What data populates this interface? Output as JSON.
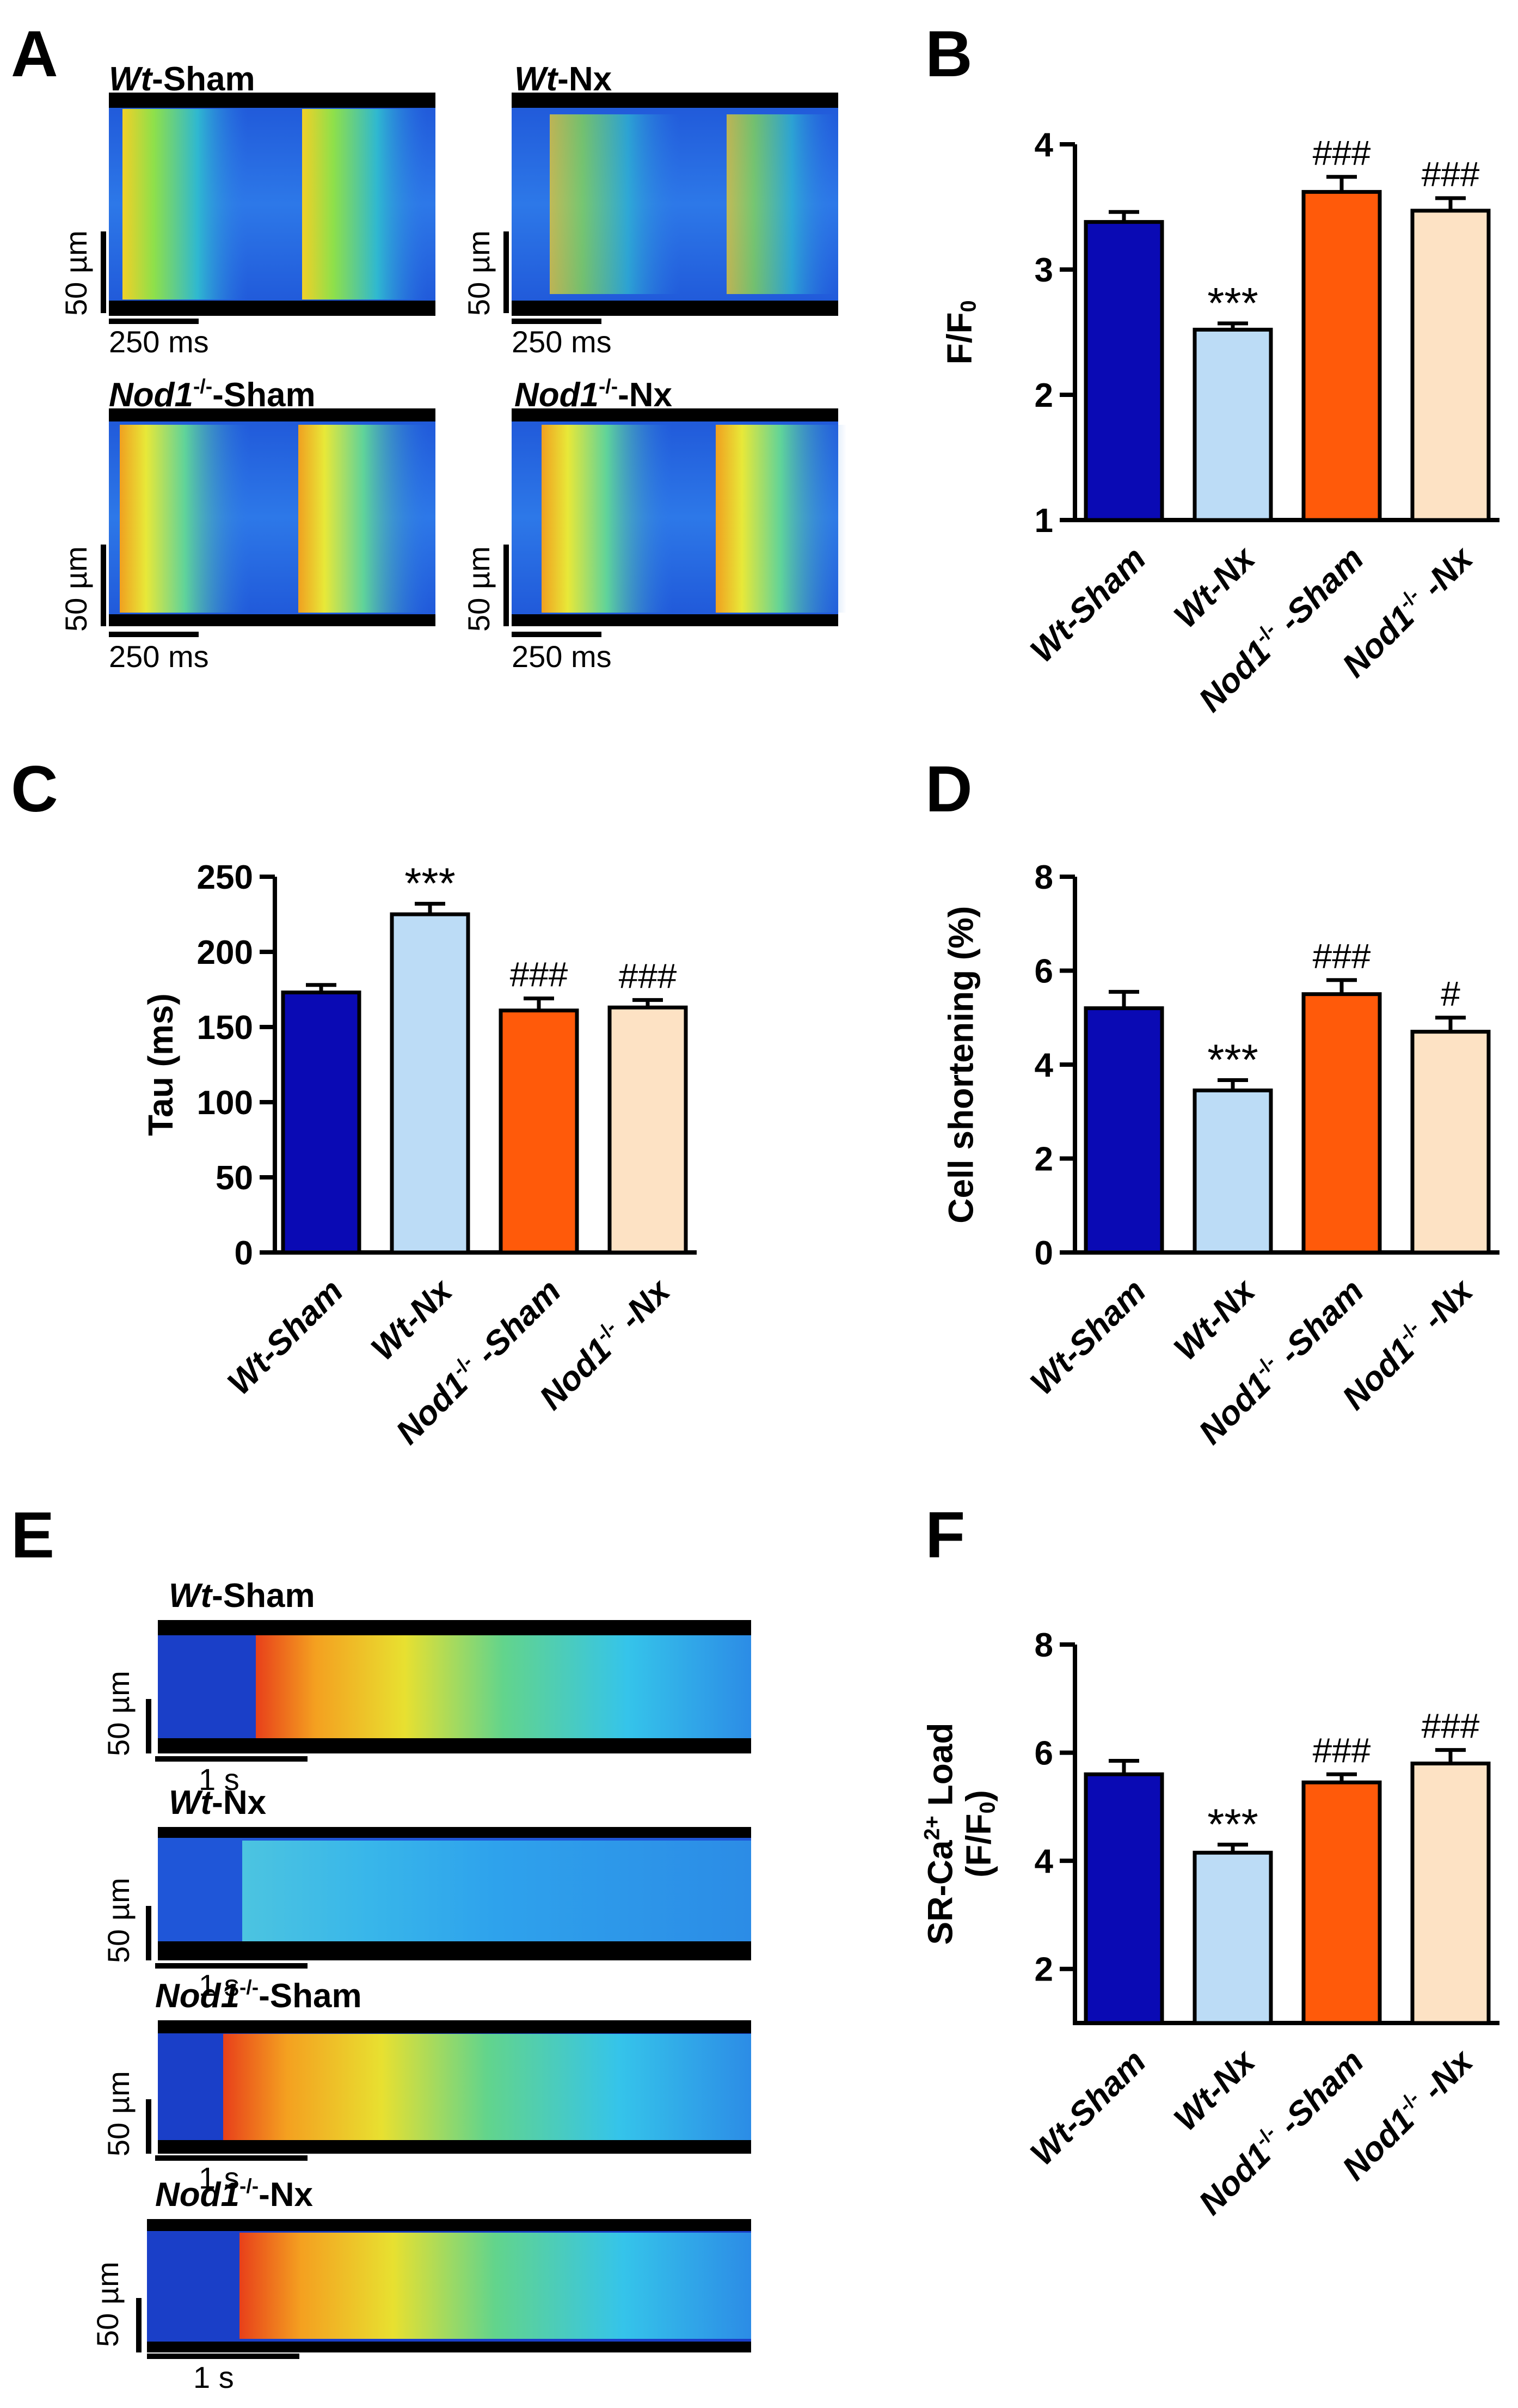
{
  "panels": {
    "A": {
      "letter": "A",
      "groups": [
        {
          "name_it": "Wt",
          "name_sup": "",
          "name_rest": "-Sham",
          "scale_v": "50 µm",
          "scale_h": "250 ms"
        },
        {
          "name_it": "Wt",
          "name_sup": "",
          "name_rest": "-Nx",
          "scale_v": "50 µm",
          "scale_h": "250 ms"
        },
        {
          "name_it": "Nod1",
          "name_sup": "-/-",
          "name_rest": "-Sham",
          "scale_v": "50 µm",
          "scale_h": "250 ms"
        },
        {
          "name_it": "Nod1",
          "name_sup": "-/-",
          "name_rest": "-Nx",
          "scale_v": "50 µm",
          "scale_h": "250 ms"
        }
      ]
    },
    "B": {
      "letter": "B"
    },
    "C": {
      "letter": "C"
    },
    "D": {
      "letter": "D"
    },
    "E": {
      "letter": "E",
      "groups": [
        {
          "name_it": "Wt",
          "name_sup": "",
          "name_rest": "-Sham",
          "scale_v": "50 µm",
          "scale_h": "1 s"
        },
        {
          "name_it": "Wt",
          "name_sup": "",
          "name_rest": "-Nx",
          "scale_v": "50 µm",
          "scale_h": "1 s"
        },
        {
          "name_it": "Nod1",
          "name_sup": "-/-",
          "name_rest": "-Sham",
          "scale_v": "50 µm",
          "scale_h": "1 s"
        },
        {
          "name_it": "Nod1",
          "name_sup": "-/-",
          "name_rest": "-Nx",
          "scale_v": "50 µm",
          "scale_h": "1 s"
        }
      ]
    },
    "F": {
      "letter": "F"
    }
  },
  "chart_data": [
    {
      "panel": "B",
      "type": "bar",
      "categories": [
        "Wt-Sham",
        "Wt-Nx",
        "Nod1-/- -Sham",
        "Nod1-/- -Nx"
      ],
      "category_labels": [
        {
          "it": "Wt",
          "rest": "-Sham",
          "sup": "",
          "tail": ""
        },
        {
          "it": "Wt",
          "rest": "-Nx",
          "sup": "",
          "tail": ""
        },
        {
          "it": "Nod1",
          "rest": "",
          "sup": "-/-",
          "tail": " -Sham"
        },
        {
          "it": "Nod1",
          "rest": "",
          "sup": "-/-",
          "tail": " -Nx"
        }
      ],
      "values": [
        3.38,
        2.52,
        3.62,
        3.47
      ],
      "errors": [
        0.08,
        0.05,
        0.12,
        0.1
      ],
      "annotations": [
        "",
        "***",
        "###",
        "###"
      ],
      "ylabel_main": "F/F",
      "ylabel_sub": "0",
      "ylim": [
        1,
        4
      ],
      "yticks": [
        1,
        2,
        3,
        4
      ],
      "colors": [
        "#0a0ab4",
        "#bcdcf6",
        "#ff5a0a",
        "#fde2c4"
      ]
    },
    {
      "panel": "C",
      "type": "bar",
      "categories": [
        "Wt-Sham",
        "Wt-Nx",
        "Nod1-/- -Sham",
        "Nod1-/- -Nx"
      ],
      "category_labels": [
        {
          "it": "Wt",
          "rest": "-Sham",
          "sup": "",
          "tail": ""
        },
        {
          "it": "Wt",
          "rest": "-Nx",
          "sup": "",
          "tail": ""
        },
        {
          "it": "Nod1",
          "rest": "",
          "sup": "-/-",
          "tail": " -Sham"
        },
        {
          "it": "Nod1",
          "rest": "",
          "sup": "-/-",
          "tail": " -Nx"
        }
      ],
      "values": [
        173,
        225,
        161,
        163
      ],
      "errors": [
        5,
        7,
        8,
        5
      ],
      "annotations": [
        "",
        "***",
        "###",
        "###"
      ],
      "ylabel_main": "Tau (ms)",
      "ylabel_sub": "",
      "ylim": [
        0,
        250
      ],
      "yticks": [
        0,
        50,
        100,
        150,
        200,
        250
      ],
      "colors": [
        "#0a0ab4",
        "#bcdcf6",
        "#ff5a0a",
        "#fde2c4"
      ]
    },
    {
      "panel": "D",
      "type": "bar",
      "categories": [
        "Wt-Sham",
        "Wt-Nx",
        "Nod1-/- -Sham",
        "Nod1-/- -Nx"
      ],
      "category_labels": [
        {
          "it": "Wt",
          "rest": "-Sham",
          "sup": "",
          "tail": ""
        },
        {
          "it": "Wt",
          "rest": "-Nx",
          "sup": "",
          "tail": ""
        },
        {
          "it": "Nod1",
          "rest": "",
          "sup": "-/-",
          "tail": " -Sham"
        },
        {
          "it": "Nod1",
          "rest": "",
          "sup": "-/-",
          "tail": " -Nx"
        }
      ],
      "values": [
        5.2,
        3.45,
        5.5,
        4.7
      ],
      "errors": [
        0.35,
        0.22,
        0.3,
        0.3
      ],
      "annotations": [
        "",
        "***",
        "###",
        "#"
      ],
      "ylabel_main": "Cell shortening (%)",
      "ylabel_sub": "",
      "ylim": [
        0,
        8
      ],
      "yticks": [
        0,
        2,
        4,
        6,
        8
      ],
      "colors": [
        "#0a0ab4",
        "#bcdcf6",
        "#ff5a0a",
        "#fde2c4"
      ]
    },
    {
      "panel": "F",
      "type": "bar",
      "categories": [
        "Wt-Sham",
        "Wt-Nx",
        "Nod1-/- -Sham",
        "Nod1-/- -Nx"
      ],
      "category_labels": [
        {
          "it": "Wt",
          "rest": "-Sham",
          "sup": "",
          "tail": ""
        },
        {
          "it": "Wt",
          "rest": "-Nx",
          "sup": "",
          "tail": ""
        },
        {
          "it": "Nod1",
          "rest": "",
          "sup": "-/-",
          "tail": " -Sham"
        },
        {
          "it": "Nod1",
          "rest": "",
          "sup": "-/-",
          "tail": " -Nx"
        }
      ],
      "values": [
        5.6,
        4.15,
        5.45,
        5.8
      ],
      "errors": [
        0.25,
        0.15,
        0.15,
        0.25
      ],
      "annotations": [
        "",
        "***",
        "###",
        "###"
      ],
      "ylabel_main": "SR-Ca",
      "ylabel_sup": "2+",
      "ylabel_rest": " Load",
      "ylabel_line2": "(F/F",
      "ylabel_line2_sub": "0",
      "ylabel_line2_end": ")",
      "ylim": [
        1,
        8
      ],
      "yticks": [
        2,
        4,
        6,
        8
      ],
      "colors": [
        "#0a0ab4",
        "#bcdcf6",
        "#ff5a0a",
        "#fde2c4"
      ]
    }
  ]
}
